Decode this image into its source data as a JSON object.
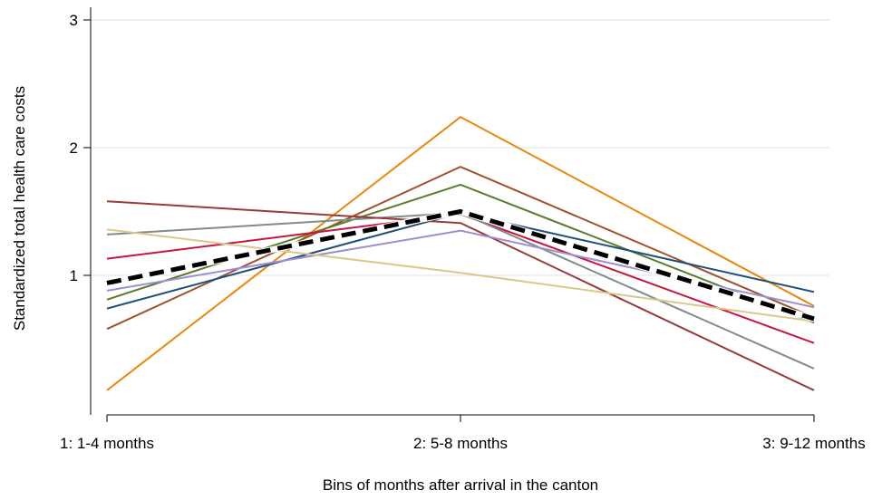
{
  "chart_data": {
    "type": "line",
    "title": "",
    "xlabel": "Bins of months after arrival in the canton",
    "ylabel": "Standardized total health care costs",
    "categories": [
      "1: 1-4 months",
      "2: 5-8 months",
      "3: 9-12 months"
    ],
    "x": [
      1,
      2,
      3
    ],
    "ylim": [
      0,
      3
    ],
    "yticks": [
      1,
      2,
      3
    ],
    "grid": true,
    "legend": "none",
    "series": [
      {
        "color": "#E8890C",
        "values": [
          0.1,
          2.24,
          0.76
        ]
      },
      {
        "color": "#A0522D",
        "values": [
          0.58,
          1.85,
          0.67
        ]
      },
      {
        "color": "#5A7D2A",
        "values": [
          0.81,
          1.71,
          0.63
        ]
      },
      {
        "color": "#1F4E79",
        "values": [
          0.74,
          1.49,
          0.87
        ]
      },
      {
        "color": "#C8153F",
        "values": [
          1.13,
          1.48,
          0.47
        ]
      },
      {
        "color": "#7E8C8C",
        "values": [
          1.32,
          1.49,
          0.27
        ]
      },
      {
        "color": "#993A3A",
        "values": [
          1.58,
          1.41,
          0.1
        ]
      },
      {
        "color": "#9B8FD0",
        "values": [
          0.88,
          1.35,
          0.75
        ]
      },
      {
        "color": "#D8C98A",
        "values": [
          1.36,
          1.02,
          0.64
        ]
      },
      {
        "color": "#000000",
        "dashed": true,
        "values": [
          0.94,
          1.5,
          0.66
        ]
      }
    ]
  }
}
